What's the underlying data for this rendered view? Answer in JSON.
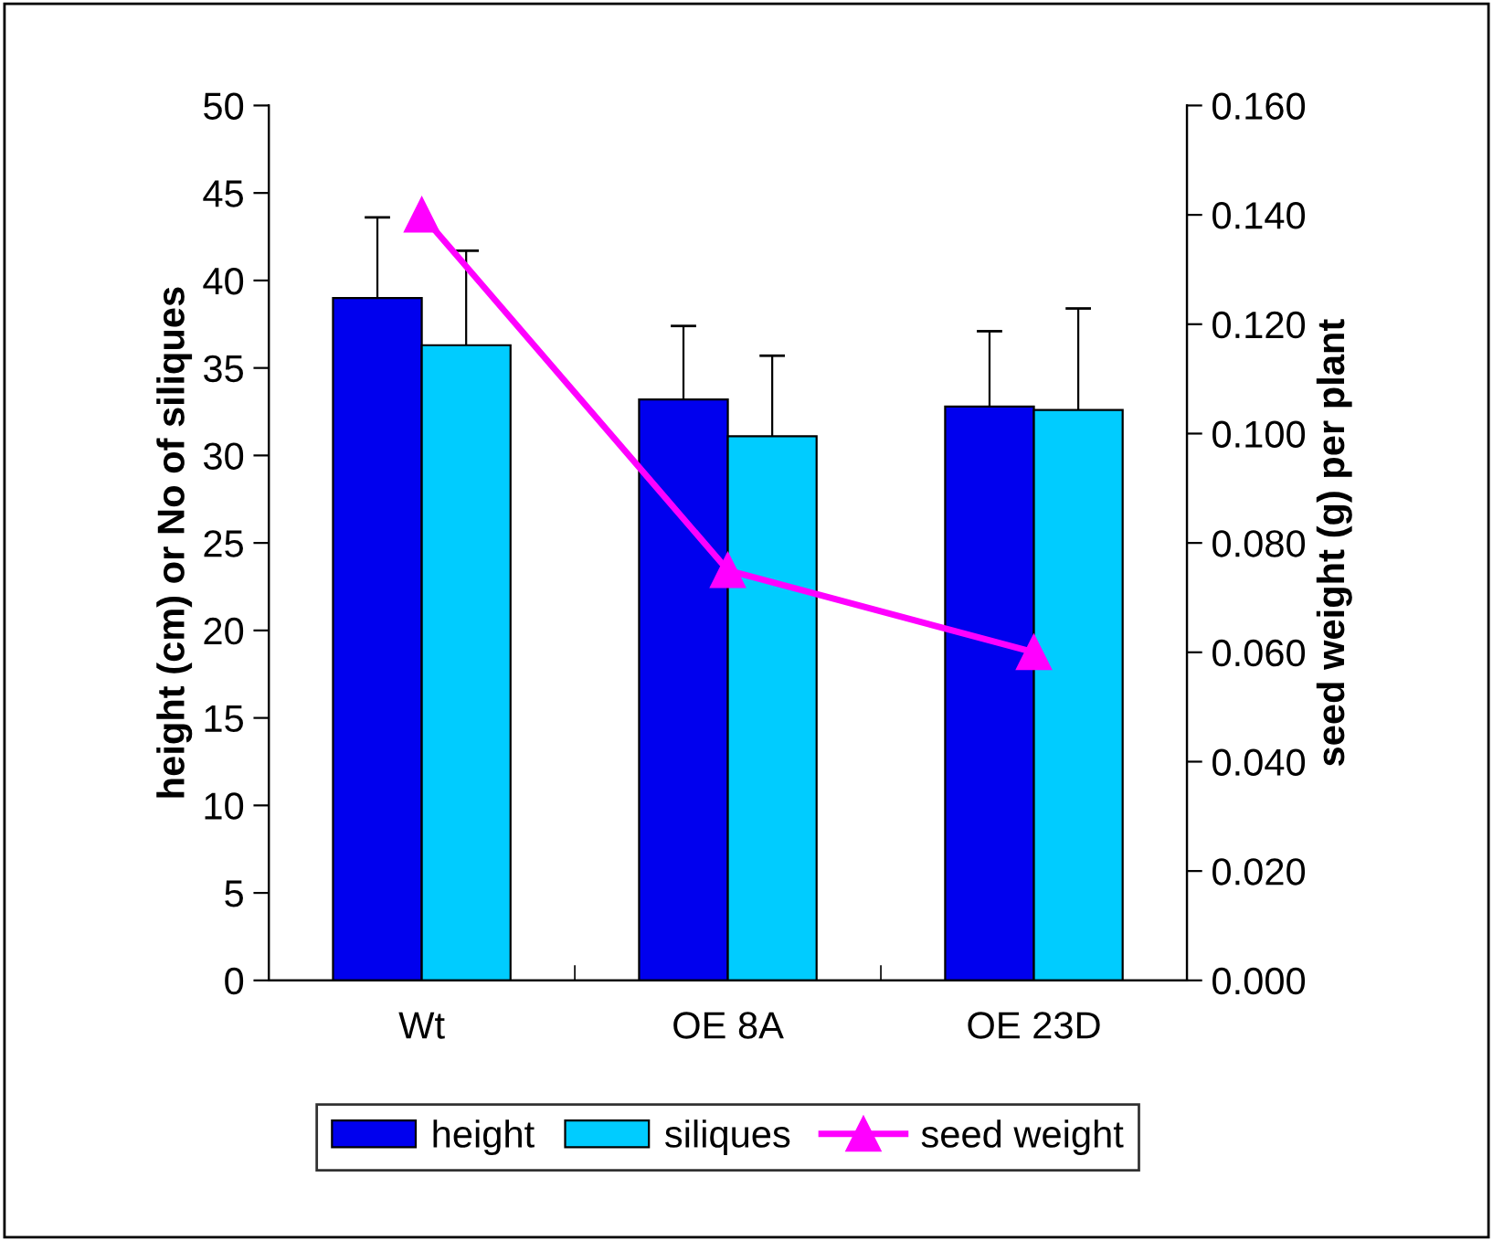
{
  "chart_data": {
    "type": "bar",
    "categories": [
      "Wt",
      "OE 8A",
      "OE 23D"
    ],
    "ylabel": "height (cm) or No of siliques",
    "y2label": "seed weight (g) per plant",
    "ylim": [
      0,
      50
    ],
    "yticks": [
      0,
      5,
      10,
      15,
      20,
      25,
      30,
      35,
      40,
      45,
      50
    ],
    "y2lim": [
      0,
      0.16
    ],
    "y2ticks": [
      {
        "value": 0,
        "label": "0.000"
      },
      {
        "value": 0.02,
        "label": "0.020"
      },
      {
        "value": 0.04,
        "label": "0.040"
      },
      {
        "value": 0.06,
        "label": "0.060"
      },
      {
        "value": 0.08,
        "label": "0.080"
      },
      {
        "value": 0.1,
        "label": "0.100"
      },
      {
        "value": 0.12,
        "label": "0.120"
      },
      {
        "value": 0.14,
        "label": "0.140"
      },
      {
        "value": 0.16,
        "label": "0.160"
      }
    ],
    "series": [
      {
        "name": "height",
        "color": "#0000ee",
        "values": [
          39.0,
          33.2,
          32.8
        ],
        "errors": [
          4.6,
          4.2,
          4.3
        ]
      },
      {
        "name": "siliques",
        "color": "#00ccff",
        "values": [
          36.3,
          31.1,
          32.6
        ],
        "errors": [
          5.4,
          4.6,
          5.8
        ]
      },
      {
        "name": "seed weight",
        "type": "line",
        "axis": "y2",
        "color": "#ff00ff",
        "marker": "triangle",
        "values": [
          0.14,
          0.075,
          0.06
        ]
      }
    ],
    "legend": "bottom",
    "grid": false
  }
}
